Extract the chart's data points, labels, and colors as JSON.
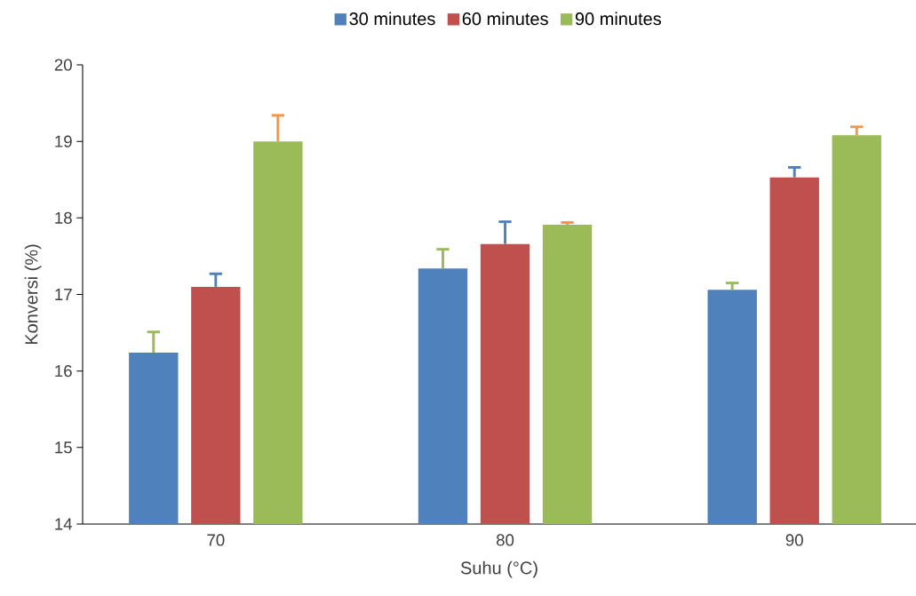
{
  "chart_data": {
    "type": "bar",
    "xlabel": "Suhu (°C)",
    "ylabel": "Konversi (%)",
    "categories": [
      "70",
      "80",
      "90"
    ],
    "series": [
      {
        "name": "30 minutes",
        "color": "#4f81bd",
        "values": [
          16.24,
          17.34,
          17.06
        ],
        "errors": [
          [
            16.24,
            16.51
          ],
          [
            17.34,
            17.59
          ],
          [
            17.06,
            17.15
          ]
        ]
      },
      {
        "name": "60 minutes",
        "color": "#c0504d",
        "values": [
          17.1,
          17.66,
          18.53
        ],
        "errors": [
          [
            17.1,
            17.27
          ],
          [
            17.66,
            17.95
          ],
          [
            18.53,
            18.66
          ]
        ]
      },
      {
        "name": "90 minutes",
        "color": "#9bbb59",
        "values": [
          19.0,
          17.91,
          19.08
        ],
        "errors": [
          [
            19.0,
            19.34
          ],
          [
            17.91,
            17.94
          ],
          [
            19.08,
            19.19
          ]
        ]
      }
    ],
    "ylim": [
      14,
      20
    ],
    "yticks": [
      14,
      15,
      16,
      17,
      18,
      19,
      20
    ],
    "grid": false,
    "legend": "top"
  }
}
